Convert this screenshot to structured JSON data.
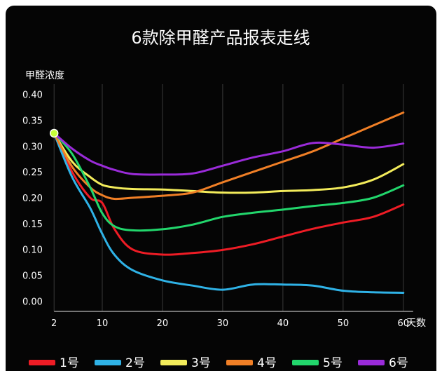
{
  "chart_data": {
    "type": "line",
    "title": "6款除甲醛产品报表走线",
    "ylabel": "甲醛浓度",
    "xlabel": "天数",
    "x_ticks": [
      2,
      10,
      20,
      30,
      40,
      50,
      60
    ],
    "y_ticks": [
      "0.00",
      "0.05",
      "0.10",
      "0.15",
      "0.20",
      "0.25",
      "0.30",
      "0.35",
      "0.40"
    ],
    "xlim": [
      0,
      62
    ],
    "ylim": [
      -0.02,
      0.42
    ],
    "grid": true,
    "legend_position": "bottom",
    "x": [
      2,
      5,
      8,
      10,
      12,
      15,
      20,
      25,
      30,
      35,
      40,
      45,
      50,
      55,
      60
    ],
    "series": [
      {
        "name": "1号",
        "color": "#ee1c25",
        "values": [
          0.325,
          0.25,
          0.2,
          0.19,
          0.14,
          0.1,
          0.09,
          0.093,
          0.099,
          0.11,
          0.125,
          0.14,
          0.152,
          0.163,
          0.187
        ]
      },
      {
        "name": "2号",
        "color": "#2fb2e6",
        "values": [
          0.325,
          0.24,
          0.18,
          0.13,
          0.09,
          0.06,
          0.04,
          0.03,
          0.022,
          0.032,
          0.032,
          0.03,
          0.02,
          0.017,
          0.016
        ]
      },
      {
        "name": "3号",
        "color": "#f3ec5b",
        "values": [
          0.325,
          0.27,
          0.24,
          0.225,
          0.22,
          0.217,
          0.216,
          0.213,
          0.21,
          0.21,
          0.213,
          0.215,
          0.22,
          0.235,
          0.265
        ]
      },
      {
        "name": "4号",
        "color": "#f07f26",
        "values": [
          0.325,
          0.26,
          0.22,
          0.205,
          0.198,
          0.2,
          0.204,
          0.21,
          0.23,
          0.25,
          0.27,
          0.29,
          0.315,
          0.34,
          0.365
        ]
      },
      {
        "name": "5号",
        "color": "#22d66c",
        "values": [
          0.325,
          0.285,
          0.22,
          0.17,
          0.145,
          0.137,
          0.139,
          0.148,
          0.163,
          0.171,
          0.177,
          0.184,
          0.19,
          0.2,
          0.224
        ]
      },
      {
        "name": "6号",
        "color": "#9a2bd9",
        "values": [
          0.325,
          0.295,
          0.272,
          0.262,
          0.254,
          0.246,
          0.245,
          0.247,
          0.262,
          0.278,
          0.29,
          0.306,
          0.303,
          0.297,
          0.305
        ]
      }
    ],
    "start_point": {
      "x": 2,
      "y": 0.325,
      "color": "#c6ff3a"
    }
  }
}
